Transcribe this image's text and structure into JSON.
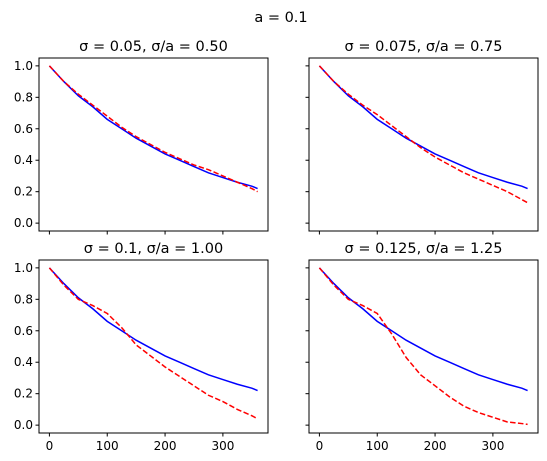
{
  "figure": {
    "suptitle": "a = 0.1"
  },
  "colors": {
    "solid": "#0000ff",
    "dashed": "#ff0000"
  },
  "chart_data": [
    {
      "type": "line",
      "title": "σ = 0.05, σ/a = 0.50",
      "xlabel": "",
      "ylabel": "",
      "xlim": [
        -18,
        378
      ],
      "ylim": [
        -0.05,
        1.05
      ],
      "xticks": [
        0,
        100,
        200,
        300
      ],
      "yticks": [
        0.0,
        0.2,
        0.4,
        0.6,
        0.8,
        1.0
      ],
      "show_xticklabels": false,
      "show_yticklabels": true,
      "series": [
        {
          "style": "solid",
          "x": [
            0,
            25,
            50,
            75,
            100,
            125,
            150,
            175,
            200,
            225,
            250,
            275,
            300,
            325,
            350,
            360
          ],
          "y": [
            1.0,
            0.9,
            0.81,
            0.74,
            0.66,
            0.6,
            0.54,
            0.49,
            0.44,
            0.4,
            0.36,
            0.32,
            0.29,
            0.26,
            0.235,
            0.22
          ]
        },
        {
          "style": "dashed",
          "x": [
            0,
            25,
            50,
            75,
            100,
            125,
            150,
            175,
            200,
            225,
            250,
            275,
            300,
            325,
            350,
            360
          ],
          "y": [
            1.0,
            0.9,
            0.82,
            0.75,
            0.68,
            0.61,
            0.55,
            0.5,
            0.45,
            0.41,
            0.37,
            0.34,
            0.3,
            0.26,
            0.22,
            0.2
          ]
        }
      ]
    },
    {
      "type": "line",
      "title": "σ = 0.075, σ/a = 0.75",
      "xlabel": "",
      "ylabel": "",
      "xlim": [
        -18,
        378
      ],
      "ylim": [
        -0.05,
        1.05
      ],
      "xticks": [
        0,
        100,
        200,
        300
      ],
      "yticks": [
        0.0,
        0.2,
        0.4,
        0.6,
        0.8,
        1.0
      ],
      "show_xticklabels": false,
      "show_yticklabels": false,
      "series": [
        {
          "style": "solid",
          "x": [
            0,
            25,
            50,
            75,
            100,
            125,
            150,
            175,
            200,
            225,
            250,
            275,
            300,
            325,
            350,
            360
          ],
          "y": [
            1.0,
            0.9,
            0.81,
            0.74,
            0.66,
            0.6,
            0.54,
            0.49,
            0.44,
            0.4,
            0.36,
            0.32,
            0.29,
            0.26,
            0.235,
            0.22
          ]
        },
        {
          "style": "dashed",
          "x": [
            0,
            25,
            50,
            75,
            100,
            125,
            150,
            175,
            200,
            225,
            250,
            275,
            300,
            325,
            350,
            360
          ],
          "y": [
            1.0,
            0.9,
            0.82,
            0.75,
            0.69,
            0.62,
            0.55,
            0.48,
            0.42,
            0.37,
            0.32,
            0.28,
            0.24,
            0.2,
            0.15,
            0.13
          ]
        }
      ]
    },
    {
      "type": "line",
      "title": "σ = 0.1, σ/a = 1.00",
      "xlabel": "",
      "ylabel": "",
      "xlim": [
        -18,
        378
      ],
      "ylim": [
        -0.05,
        1.05
      ],
      "xticks": [
        0,
        100,
        200,
        300
      ],
      "yticks": [
        0.0,
        0.2,
        0.4,
        0.6,
        0.8,
        1.0
      ],
      "show_xticklabels": true,
      "show_yticklabels": true,
      "series": [
        {
          "style": "solid",
          "x": [
            0,
            25,
            50,
            75,
            100,
            125,
            150,
            175,
            200,
            225,
            250,
            275,
            300,
            325,
            350,
            360
          ],
          "y": [
            1.0,
            0.9,
            0.81,
            0.74,
            0.66,
            0.6,
            0.54,
            0.49,
            0.44,
            0.4,
            0.36,
            0.32,
            0.29,
            0.26,
            0.235,
            0.22
          ]
        },
        {
          "style": "dashed",
          "x": [
            0,
            25,
            50,
            75,
            100,
            125,
            150,
            175,
            200,
            225,
            250,
            275,
            300,
            325,
            350,
            360
          ],
          "y": [
            1.0,
            0.89,
            0.8,
            0.76,
            0.71,
            0.62,
            0.51,
            0.44,
            0.37,
            0.31,
            0.25,
            0.19,
            0.15,
            0.1,
            0.06,
            0.04
          ]
        }
      ]
    },
    {
      "type": "line",
      "title": "σ = 0.125, σ/a = 1.25",
      "xlabel": "",
      "ylabel": "",
      "xlim": [
        -18,
        378
      ],
      "ylim": [
        -0.05,
        1.05
      ],
      "xticks": [
        0,
        100,
        200,
        300
      ],
      "yticks": [
        0.0,
        0.2,
        0.4,
        0.6,
        0.8,
        1.0
      ],
      "show_xticklabels": true,
      "show_yticklabels": false,
      "series": [
        {
          "style": "solid",
          "x": [
            0,
            25,
            50,
            75,
            100,
            125,
            150,
            175,
            200,
            225,
            250,
            275,
            300,
            325,
            350,
            360
          ],
          "y": [
            1.0,
            0.9,
            0.81,
            0.74,
            0.66,
            0.6,
            0.54,
            0.49,
            0.44,
            0.4,
            0.36,
            0.32,
            0.29,
            0.26,
            0.235,
            0.22
          ]
        },
        {
          "style": "dashed",
          "x": [
            0,
            25,
            50,
            75,
            100,
            125,
            150,
            175,
            200,
            225,
            250,
            275,
            300,
            325,
            350,
            360
          ],
          "y": [
            1.0,
            0.89,
            0.8,
            0.76,
            0.71,
            0.58,
            0.43,
            0.32,
            0.25,
            0.18,
            0.12,
            0.08,
            0.05,
            0.02,
            0.01,
            0.005
          ]
        }
      ]
    }
  ]
}
